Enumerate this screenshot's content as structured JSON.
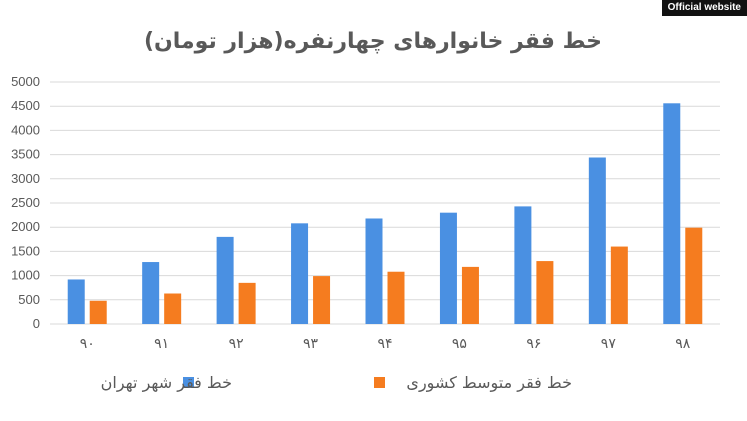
{
  "badge": {
    "label": "Official website"
  },
  "chart_data": {
    "type": "bar",
    "title": "خط فقر خانوارهای چهارنفره(هزار تومان)",
    "categories": [
      "۹۰",
      "۹۱",
      "۹۲",
      "۹۳",
      "۹۴",
      "۹۵",
      "۹۶",
      "۹۷",
      "۹۸"
    ],
    "series": [
      {
        "name": "خط فقر شهر تهران",
        "color": "#4a90e2",
        "values": [
          920,
          1280,
          1800,
          2080,
          2180,
          2300,
          2430,
          3440,
          4560
        ]
      },
      {
        "name": "خط فقر متوسط کشوری",
        "color": "#f57c1f",
        "values": [
          480,
          630,
          850,
          990,
          1080,
          1180,
          1300,
          1600,
          1990
        ]
      }
    ],
    "yticks": [
      "0",
      "500",
      "1000",
      "1500",
      "2000",
      "2500",
      "3000",
      "3500",
      "4000",
      "4500",
      "5000"
    ],
    "ylim": [
      0,
      5000
    ],
    "grid": true,
    "legend_position": "bottom"
  }
}
